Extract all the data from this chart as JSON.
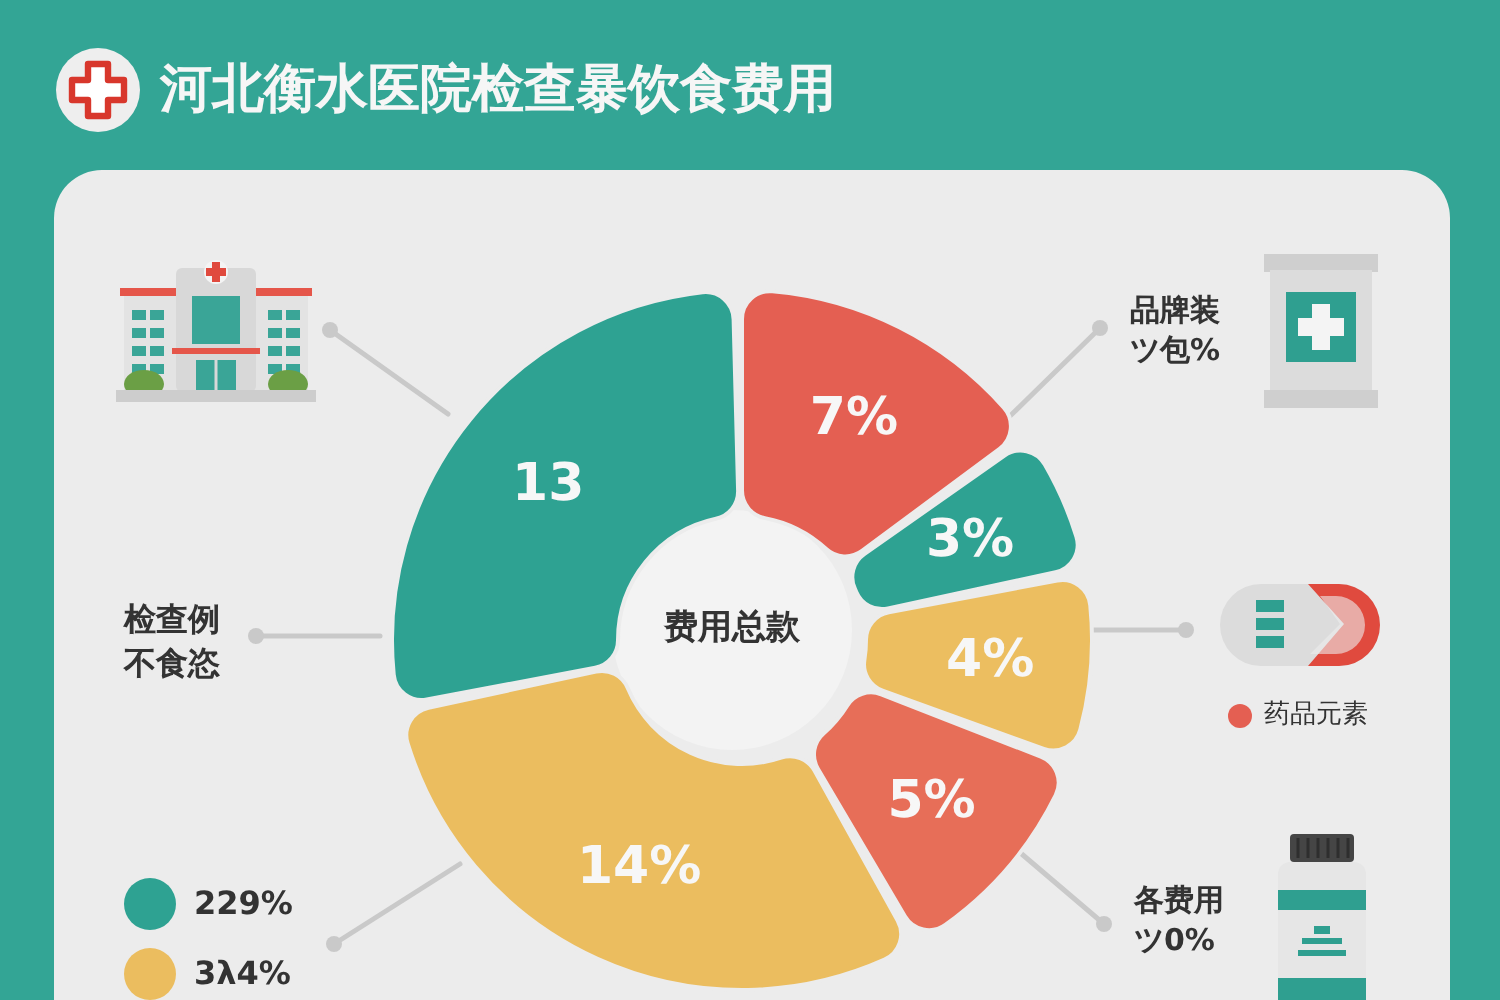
{
  "chart_data": {
    "type": "donut",
    "title": "河北衡水医院检查暴饮食费用",
    "categories": [
      null,
      null,
      null,
      null,
      null,
      null
    ],
    "values": [
      7,
      3,
      4,
      5,
      14,
      13
    ],
    "colors": [
      "#e45f52",
      "#2ea292",
      "#ecbe60",
      "#e76e58",
      "#ebbd5f",
      "#2ea292"
    ],
    "value_labels": [
      "7%",
      "3%",
      "4%",
      "5%",
      "14%",
      "13"
    ],
    "annotations": [
      "费用总款",
      "品牌装ツ包%",
      "药品元素",
      "各费用ツ0%",
      "检查例不食恣",
      "229%",
      "3λ4%"
    ]
  }
}
